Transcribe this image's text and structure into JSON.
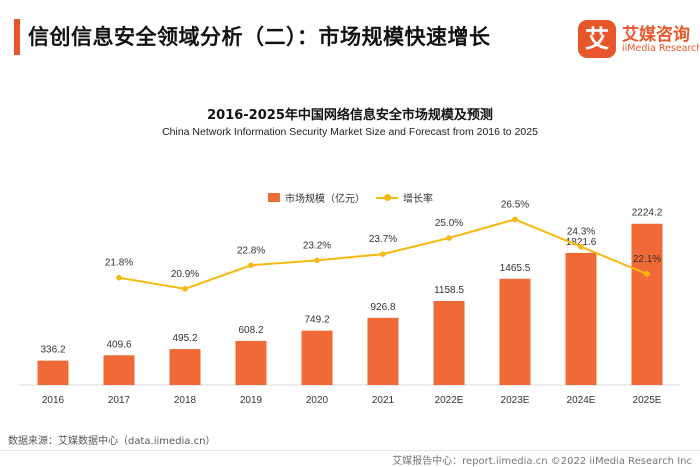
{
  "header": {
    "title": "信创信息安全领域分析（二）：市场规模快速增长"
  },
  "logo": {
    "mark": "艾",
    "name_cn": "艾媒咨询",
    "name_en": "iiMedia Research"
  },
  "chart_data": {
    "type": "bar+line",
    "title": "2016-2025年中国网络信息安全市场规模及预测",
    "subtitle": "China Network Information Security Market Size and Forecast from 2016 to 2025",
    "categories": [
      "2016",
      "2017",
      "2018",
      "2019",
      "2020",
      "2021",
      "2022E",
      "2023E",
      "2024E",
      "2025E"
    ],
    "series": [
      {
        "name": "市场规模（亿元）",
        "type": "bar",
        "color": "#f06a37",
        "values": [
          336.2,
          409.6,
          495.2,
          608.2,
          749.2,
          926.8,
          1158.5,
          1465.5,
          1821.6,
          2224.2
        ],
        "labels": [
          "336.2",
          "409.6",
          "495.2",
          "608.2",
          "749.2",
          "926.8",
          "1158.5",
          "1465.5",
          "1821.6",
          "2224.2"
        ]
      },
      {
        "name": "增长率",
        "type": "line",
        "color": "#f6b90e",
        "values": [
          null,
          21.8,
          20.9,
          22.8,
          23.2,
          23.7,
          25.0,
          26.5,
          24.3,
          22.1
        ],
        "labels": [
          "",
          "21.8%",
          "20.9%",
          "22.8%",
          "23.2%",
          "23.7%",
          "25.0%",
          "26.5%",
          "24.3%",
          "22.1%"
        ]
      }
    ],
    "legend_position": "top-center"
  },
  "footer": {
    "source": "数据来源：艾媒数据中心（data.iimedia.cn）",
    "brand": "艾媒报告中心：report.iimedia.cn  ©2022  iiMedia Research  Inc"
  }
}
